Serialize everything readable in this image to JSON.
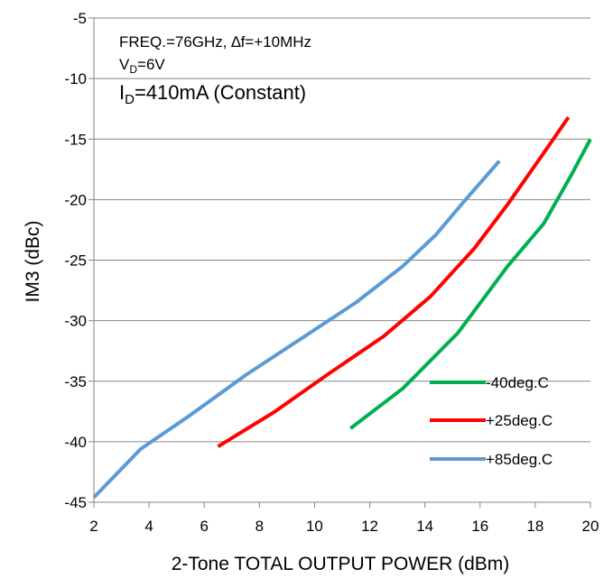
{
  "chart_data": {
    "type": "line",
    "xlabel": "2-Tone TOTAL OUTPUT POWER (dBm)",
    "ylabel": "IM3 (dBc)",
    "xlim": [
      2,
      20
    ],
    "ylim": [
      -45,
      -5
    ],
    "xticks": [
      2,
      4,
      6,
      8,
      10,
      12,
      14,
      16,
      18,
      20
    ],
    "yticks": [
      -5,
      -10,
      -15,
      -20,
      -25,
      -30,
      -35,
      -40,
      -45
    ],
    "grid": "horizontal",
    "legend_position": "bottom-right",
    "annotations": {
      "line1": {
        "text": "FREQ.=76GHz, ∆f=+10MHz"
      },
      "line2": {
        "main": "V",
        "sub": "D",
        "rest": "=6V"
      },
      "line3": {
        "main": "I",
        "sub": "D",
        "rest": "=410mA (Constant)"
      }
    },
    "series": [
      {
        "name": "-40deg.C",
        "color": "#00b050",
        "x": [
          11.3,
          13.2,
          15.2,
          17.0,
          18.3,
          19.3,
          20.0
        ],
        "y": [
          -38.9,
          -35.6,
          -31.0,
          -25.5,
          -22.0,
          -18.0,
          -15.0
        ]
      },
      {
        "name": "+25deg.C",
        "color": "#ff0000",
        "x": [
          6.5,
          8.5,
          10.5,
          12.5,
          14.2,
          15.8,
          17.0,
          18.2,
          19.2
        ],
        "y": [
          -40.4,
          -37.6,
          -34.4,
          -31.3,
          -28.0,
          -24.0,
          -20.4,
          -16.5,
          -13.2
        ]
      },
      {
        "name": "+85deg.C",
        "color": "#5b9bd5",
        "x": [
          2.0,
          3.7,
          5.5,
          7.5,
          9.5,
          11.5,
          13.2,
          14.4,
          15.4,
          16.7
        ],
        "y": [
          -44.6,
          -40.6,
          -37.8,
          -34.5,
          -31.5,
          -28.5,
          -25.5,
          -22.9,
          -20.2,
          -16.8
        ]
      }
    ]
  }
}
